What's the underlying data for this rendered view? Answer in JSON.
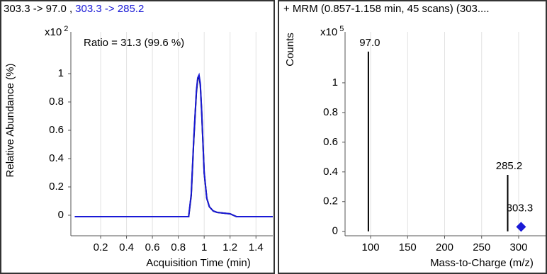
{
  "chart_data": [
    {
      "type": "line",
      "title_parts": [
        {
          "text": "303.3 -> 97.0 ,",
          "color": "#000000"
        },
        {
          "text": "303.3 -> 285.2",
          "color": "#1a1ad6"
        }
      ],
      "annotation": {
        "text": "Ratio = 31.3 (99.6 %)",
        "color": "#1a1ad6"
      },
      "y_scale": {
        "base": "x10",
        "exponent": 2
      },
      "ylabel": "Relative Abundance (%)",
      "xlabel": "Acquisition Time (min)",
      "x": [
        0,
        0.2,
        0.4,
        0.6,
        0.8,
        0.88,
        0.9,
        0.92,
        0.94,
        0.95,
        0.96,
        0.97,
        0.98,
        1.0,
        1.02,
        1.04,
        1.07,
        1.1,
        1.15,
        1.2,
        1.25,
        1.3,
        1.4,
        1.53
      ],
      "series": [
        {
          "color": "#000000",
          "values": [
            -0.01,
            -0.01,
            -0.01,
            -0.01,
            -0.01,
            -0.01,
            0.14,
            0.54,
            0.87,
            0.96,
            0.98,
            0.92,
            0.74,
            0.3,
            0.12,
            0.06,
            0.03,
            0.02,
            0.015,
            0.01,
            -0.01,
            -0.01,
            -0.01,
            -0.01
          ]
        },
        {
          "color": "#1a1ad6",
          "values": [
            -0.01,
            -0.01,
            -0.01,
            -0.01,
            -0.01,
            -0.01,
            0.15,
            0.55,
            0.88,
            0.97,
            0.99,
            0.93,
            0.75,
            0.3,
            0.12,
            0.06,
            0.03,
            0.02,
            0.015,
            0.01,
            -0.01,
            -0.01,
            -0.01,
            -0.01
          ]
        }
      ],
      "xlim": [
        -0.03,
        1.53
      ],
      "ylim": [
        -0.145,
        1.295
      ],
      "xticks": [
        0.2,
        0.4,
        0.6,
        0.8,
        1,
        1.2,
        1.4
      ],
      "yticks": [
        0,
        0.2,
        0.4,
        0.6,
        0.8,
        1
      ],
      "grid": "x"
    },
    {
      "type": "bar",
      "title_parts": [
        {
          "text": "+ MRM (0.857-1.158 min, 45 scans) (303....",
          "color": "#000000"
        }
      ],
      "y_scale": {
        "base": "x10",
        "exponent": 5
      },
      "ylabel": "Counts",
      "xlabel": "Mass-to-Charge (m/z)",
      "x": [
        97.0,
        285.2,
        303.3
      ],
      "values": [
        1.21,
        0.38,
        0.03
      ],
      "point_labels": [
        "97.0",
        "285.2",
        "303.3"
      ],
      "markers": [
        "line",
        "line",
        "diamond"
      ],
      "colors": [
        "#000000",
        "#000000",
        "#1a1ad6"
      ],
      "xlim": [
        65.5,
        336.4
      ],
      "ylim": [
        -0.03,
        1.343
      ],
      "xticks": [
        100,
        150,
        200,
        250,
        300
      ],
      "yticks": [
        0,
        0.2,
        0.4,
        0.6,
        0.8,
        1
      ],
      "grid": "x"
    }
  ]
}
